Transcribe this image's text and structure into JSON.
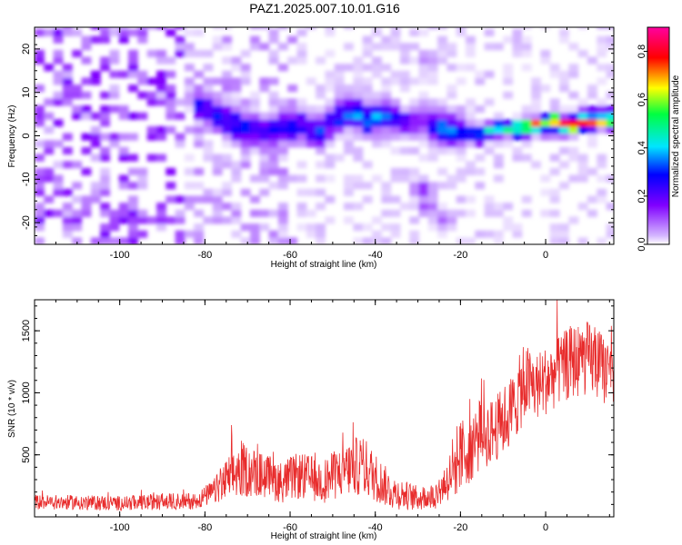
{
  "title": "PAZ1.2025.007.10.01.G16",
  "chart_data": [
    {
      "type": "heatmap",
      "xlabel": "Height of straight line (km)",
      "ylabel": "Frequency (Hz)",
      "xlim": [
        -120,
        16
      ],
      "ylim": [
        -25,
        25
      ],
      "x_ticks": [
        -100,
        -80,
        -60,
        -40,
        -20,
        0
      ],
      "y_ticks": [
        -20,
        -10,
        0,
        10,
        20
      ],
      "grid": false,
      "colorbar": {
        "label": "Normalized spectral amplitude",
        "range": [
          0.0,
          0.9
        ],
        "ticks": [
          0.0,
          0.2,
          0.4,
          0.6,
          0.8
        ],
        "colors": [
          "#ffffff",
          "#d4b6ff",
          "#8000ff",
          "#0000ff",
          "#00e5ff",
          "#00ff40",
          "#ffff00",
          "#ff0000",
          "#ff00a0"
        ]
      },
      "ridge": {
        "x": [
          -82,
          -76,
          -72,
          -66,
          -60,
          -54,
          -50,
          -46,
          -42,
          -38,
          -34,
          -30,
          -26,
          -20,
          -16,
          -10,
          -6,
          -2,
          2,
          6,
          10,
          14,
          16
        ],
        "frequency": [
          6,
          3,
          1,
          0,
          2,
          0,
          4,
          5,
          3,
          4,
          2,
          3,
          1,
          0,
          0,
          1,
          1,
          2,
          2,
          2,
          3,
          3,
          3
        ],
        "amplitude": [
          0.28,
          0.3,
          0.26,
          0.25,
          0.28,
          0.3,
          0.32,
          0.35,
          0.35,
          0.3,
          0.2,
          0.15,
          0.4,
          0.35,
          0.45,
          0.55,
          0.6,
          0.65,
          0.75,
          0.7,
          0.65,
          0.7,
          0.5
        ]
      },
      "blobs": [
        {
          "x": -30,
          "frequency": -13,
          "amplitude": 0.15
        },
        {
          "x": -29,
          "frequency": -17,
          "amplitude": 0.12
        },
        {
          "x": -25,
          "frequency": -20,
          "amplitude": 0.1
        },
        {
          "x": -29,
          "frequency": 17,
          "amplitude": 0.08
        }
      ]
    },
    {
      "type": "line",
      "xlabel": "Height of straight line (km)",
      "ylabel": "SNR (10 * v/v)",
      "xlim": [
        -120,
        16
      ],
      "ylim": [
        0,
        1750
      ],
      "x_ticks": [
        -100,
        -80,
        -60,
        -40,
        -20,
        0
      ],
      "y_ticks": [
        500,
        1000,
        1500
      ],
      "grid": false,
      "series_color": "#e82c2c",
      "envelope": {
        "x": [
          -120,
          -100,
          -82,
          -78,
          -74,
          -71,
          -66,
          -62,
          -58,
          -52,
          -47,
          -43,
          -40,
          -36,
          -30,
          -26,
          -23,
          -20,
          -16,
          -12,
          -8,
          -5,
          -2,
          2,
          6,
          10,
          14,
          16
        ],
        "mean": [
          120,
          110,
          130,
          200,
          320,
          380,
          330,
          280,
          330,
          290,
          380,
          420,
          320,
          200,
          150,
          170,
          300,
          480,
          640,
          700,
          850,
          1080,
          1050,
          1150,
          1250,
          1280,
          1180,
          1150
        ],
        "spread": [
          60,
          60,
          70,
          100,
          200,
          220,
          180,
          170,
          190,
          180,
          220,
          250,
          200,
          140,
          100,
          110,
          180,
          300,
          300,
          260,
          300,
          320,
          280,
          280,
          300,
          300,
          280,
          250
        ]
      }
    }
  ]
}
